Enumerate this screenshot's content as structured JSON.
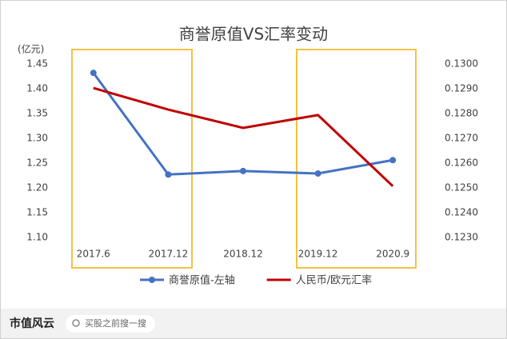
{
  "chart_data": {
    "type": "line",
    "title": "商誉原值VS汇率变动",
    "y_label": "(亿元)",
    "categories": [
      "2017.6",
      "2017.12",
      "2018.12",
      "2019.12",
      "2020.9"
    ],
    "series": [
      {
        "name": "商誉原值-左轴",
        "color": "#4472c4",
        "marker": true,
        "values": [
          1.432,
          1.227,
          1.234,
          1.229,
          1.256
        ]
      },
      {
        "name": "人民币/欧元汇率",
        "color": "#c00000",
        "axis": "y2",
        "marker": false,
        "values": [
          0.12903,
          0.12816,
          0.12742,
          0.12794,
          0.12507
        ]
      }
    ],
    "ylim": [
      1.1,
      1.45
    ],
    "yticks": [
      {
        "value": 1.1,
        "label": "1.10"
      },
      1.15,
      {
        "value": 1.2,
        "label": "1.20"
      },
      1.25,
      {
        "value": 1.3,
        "label": "1.30"
      },
      1.35,
      {
        "value": 1.4,
        "label": "1.40"
      },
      1.45
    ],
    "y2lim": [
      0.123,
      0.13
    ],
    "y2ticks": [
      {
        "value": 0.123,
        "label": "0.1230"
      },
      {
        "value": 0.124,
        "label": "0.1240"
      },
      {
        "value": 0.125,
        "label": "0.1250"
      },
      {
        "value": 0.126,
        "label": "0.1260"
      },
      {
        "value": 0.127,
        "label": "0.1270"
      },
      {
        "value": 0.128,
        "label": "0.1280"
      },
      {
        "value": 0.129,
        "label": "0.1290"
      },
      {
        "value": 0.13,
        "label": "0.1300"
      }
    ],
    "grid": false,
    "legend": "bottom"
  },
  "footer": {
    "brand": "市值风云",
    "search": "买股之前搜一搜"
  }
}
